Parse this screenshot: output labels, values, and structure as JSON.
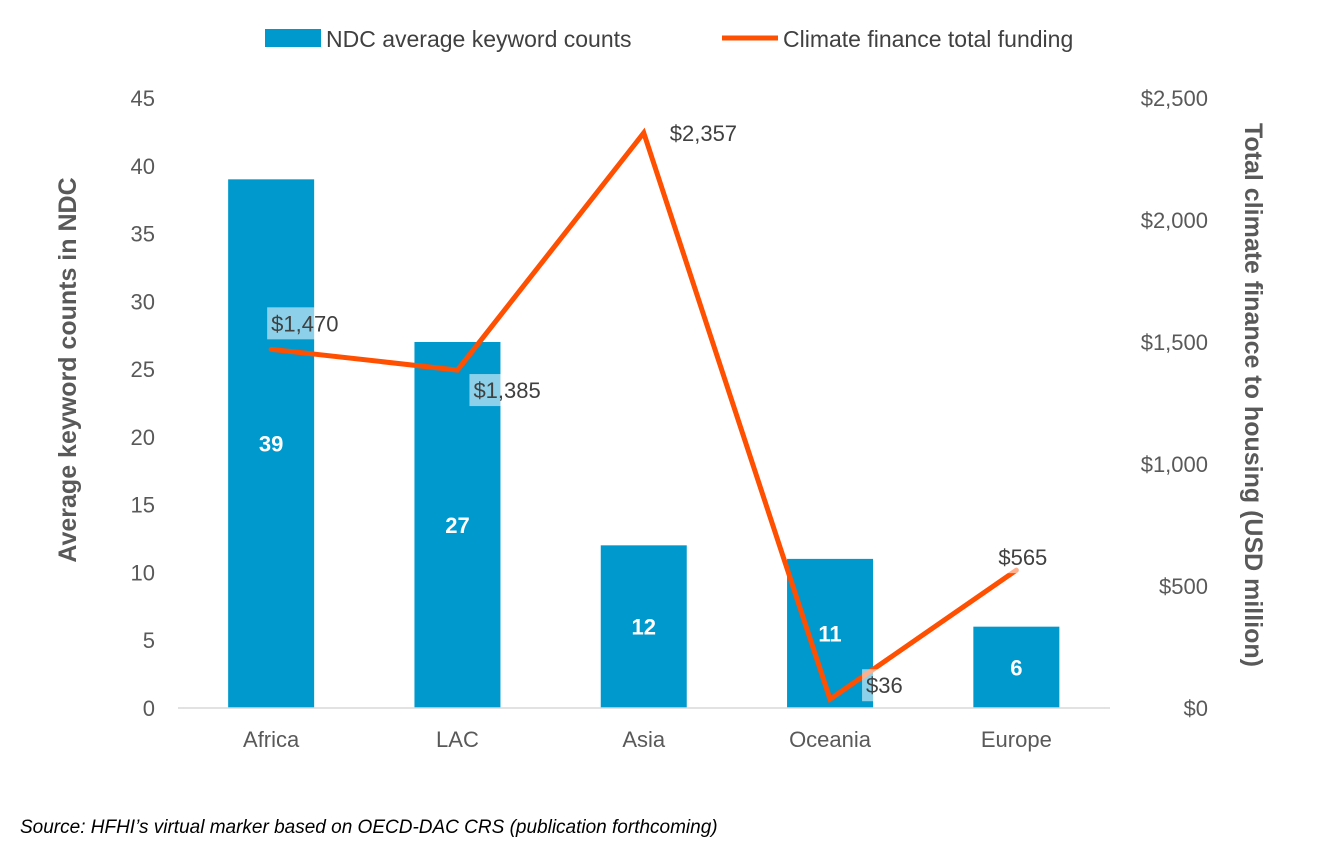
{
  "chart_data": {
    "type": "bar+line",
    "categories": [
      "Africa",
      "LAC",
      "Asia",
      "Oceania",
      "Europe"
    ],
    "series": [
      {
        "name": "NDC average keyword counts",
        "type": "bar",
        "axis": "left",
        "values": [
          39,
          27,
          12,
          11,
          6
        ],
        "labels": [
          "39",
          "27",
          "12",
          "11",
          "6"
        ],
        "color": "#0099CE"
      },
      {
        "name": "Climate finance total funding",
        "type": "line",
        "axis": "right",
        "values": [
          1470,
          1385,
          2357,
          36,
          565
        ],
        "labels": [
          "$1,470",
          "$1,385",
          "$2,357",
          "$36",
          "$565"
        ],
        "color": "#FF4F00"
      }
    ],
    "ylabel": "Average keyword counts in NDC",
    "y2label": "Total climate finance to housing (USD million)",
    "ylim": [
      0,
      45
    ],
    "y2lim": [
      0,
      2500
    ],
    "yticks": [
      "0",
      "5",
      "10",
      "15",
      "20",
      "25",
      "30",
      "35",
      "40",
      "45"
    ],
    "y2ticks": [
      "$0",
      "$500",
      "$1,000",
      "$1,500",
      "$2,000",
      "$2,500"
    ],
    "legend_position": "top",
    "grid": false
  },
  "source": "Source: HFHI’s virtual marker based on OECD-DAC CRS (publication forthcoming)"
}
